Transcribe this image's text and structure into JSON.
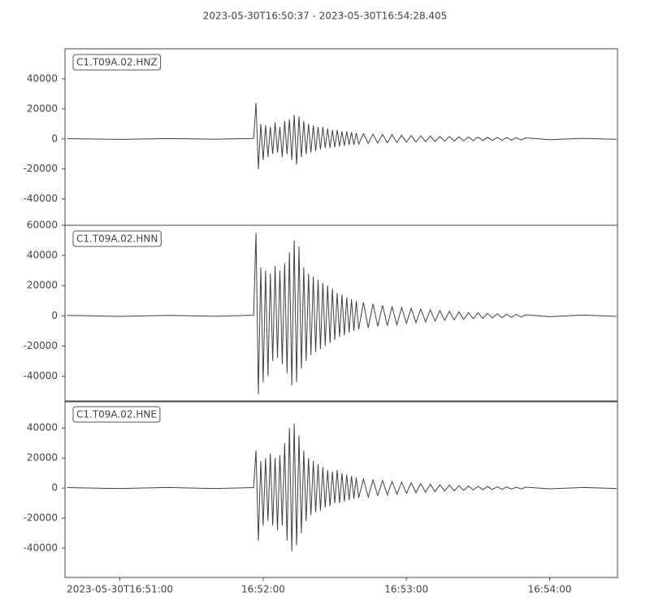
{
  "chart_data": [
    {
      "type": "line",
      "title": "2023-05-30T16:50:37  -  2023-05-30T16:54:28.405",
      "x": [
        38,
        60,
        80,
        100,
        116,
        117,
        118,
        119,
        120,
        121,
        122,
        123,
        124,
        125,
        126,
        127,
        128,
        129,
        130,
        131,
        132,
        133,
        134,
        135,
        136,
        137,
        138,
        139,
        140,
        141,
        142,
        143,
        144,
        145,
        146,
        147,
        148,
        149,
        150,
        151,
        152,
        153,
        154,
        155,
        156,
        157,
        158,
        159,
        160,
        162,
        164,
        166,
        168,
        170,
        172,
        174,
        176,
        178,
        180,
        182,
        184,
        186,
        188,
        190,
        192,
        194,
        196,
        198,
        200,
        202,
        204,
        206,
        208,
        210,
        212,
        214,
        216,
        218,
        220,
        222,
        224,
        226,
        228,
        230,
        240,
        254,
        268
      ],
      "series": [
        {
          "name": "C1.T09A.02.HNZ",
          "color": "#404040",
          "values": [
            200,
            -300,
            250,
            -200,
            300,
            24000,
            -20000,
            10000,
            -14000,
            9000,
            -12000,
            8000,
            -10000,
            11000,
            -9000,
            8000,
            -12000,
            12000,
            -10000,
            13000,
            -14000,
            16000,
            -17000,
            15000,
            -12000,
            12000,
            -10000,
            10000,
            -9000,
            9000,
            -8000,
            8000,
            -7000,
            8000,
            -6000,
            7000,
            -6000,
            6000,
            -5500,
            6000,
            -5000,
            5000,
            -4500,
            5000,
            -4000,
            4500,
            -4000,
            4000,
            -3500,
            3500,
            -3000,
            3200,
            -2800,
            3000,
            -2600,
            2800,
            -2400,
            2500,
            -2200,
            2300,
            -2000,
            2000,
            -1800,
            1900,
            -1700,
            1700,
            -1500,
            1600,
            -1400,
            1400,
            -1300,
            1300,
            -1200,
            1200,
            -1100,
            1100,
            -1000,
            1000,
            -900,
            900,
            -800,
            800,
            -700,
            700,
            -500,
            400,
            -300
          ]
        }
      ],
      "xlim": [
        37,
        268.405
      ],
      "ylim": [
        -57500,
        60000
      ],
      "yticks": [
        -40000,
        -20000,
        0,
        20000,
        40000
      ]
    },
    {
      "type": "line",
      "x": [
        38,
        60,
        80,
        100,
        116,
        117,
        118,
        119,
        120,
        121,
        122,
        123,
        124,
        125,
        126,
        127,
        128,
        129,
        130,
        131,
        132,
        133,
        134,
        135,
        136,
        137,
        138,
        139,
        140,
        141,
        142,
        143,
        144,
        145,
        146,
        147,
        148,
        149,
        150,
        151,
        152,
        153,
        154,
        155,
        156,
        157,
        158,
        159,
        160,
        162,
        164,
        166,
        168,
        170,
        172,
        174,
        176,
        178,
        180,
        182,
        184,
        186,
        188,
        190,
        192,
        194,
        196,
        198,
        200,
        202,
        204,
        206,
        208,
        210,
        212,
        214,
        216,
        218,
        220,
        222,
        224,
        226,
        228,
        230,
        240,
        254,
        268
      ],
      "series": [
        {
          "name": "C1.T09A.02.HNN",
          "color": "#404040",
          "values": [
            300,
            -400,
            300,
            -300,
            400,
            55000,
            -52000,
            32000,
            -44000,
            30000,
            -40000,
            28000,
            -30000,
            33000,
            -28000,
            30000,
            -32000,
            35000,
            -38000,
            42000,
            -46000,
            50000,
            -44000,
            46000,
            -35000,
            32000,
            -30000,
            28000,
            -26000,
            26000,
            -24000,
            24000,
            -22000,
            22000,
            -20000,
            20000,
            -18000,
            18000,
            -16000,
            15000,
            -14000,
            14000,
            -13000,
            12000,
            -11000,
            11000,
            -10000,
            10000,
            -9000,
            9000,
            -8000,
            8000,
            -7000,
            7000,
            -6500,
            6000,
            -6000,
            5500,
            -5000,
            5000,
            -4500,
            4500,
            -4000,
            4000,
            -3500,
            3500,
            -3000,
            3000,
            -2800,
            2600,
            -2400,
            2200,
            -2000,
            2000,
            -1800,
            1600,
            -1500,
            1400,
            -1200,
            1100,
            -1000,
            900,
            -800,
            700,
            -600,
            500,
            -400
          ]
        }
      ],
      "xlim": [
        37,
        268.405
      ],
      "ylim": [
        -57000,
        60000
      ],
      "yticks": [
        -40000,
        -20000,
        0,
        20000,
        40000,
        60000
      ]
    },
    {
      "type": "line",
      "x": [
        38,
        60,
        80,
        100,
        116,
        117,
        118,
        119,
        120,
        121,
        122,
        123,
        124,
        125,
        126,
        127,
        128,
        129,
        130,
        131,
        132,
        133,
        134,
        135,
        136,
        137,
        138,
        139,
        140,
        141,
        142,
        143,
        144,
        145,
        146,
        147,
        148,
        149,
        150,
        151,
        152,
        153,
        154,
        155,
        156,
        157,
        158,
        159,
        160,
        162,
        164,
        166,
        168,
        170,
        172,
        174,
        176,
        178,
        180,
        182,
        184,
        186,
        188,
        190,
        192,
        194,
        196,
        198,
        200,
        202,
        204,
        206,
        208,
        210,
        212,
        214,
        216,
        218,
        220,
        222,
        224,
        226,
        228,
        230,
        240,
        254,
        268
      ],
      "series": [
        {
          "name": "C1.T09A.02.HNE",
          "color": "#404040",
          "values": [
            300,
            -300,
            400,
            -300,
            300,
            25000,
            -35000,
            18000,
            -25000,
            20000,
            -22000,
            23000,
            -25000,
            20000,
            -28000,
            22000,
            -25000,
            30000,
            -35000,
            40000,
            -42000,
            43000,
            -38000,
            35000,
            -30000,
            25000,
            -22000,
            20000,
            -18000,
            18000,
            -16000,
            16000,
            -15000,
            14000,
            -13000,
            12000,
            -12000,
            11000,
            -10000,
            12000,
            -10000,
            10000,
            -9000,
            9000,
            -8000,
            8000,
            -7000,
            7000,
            -6500,
            6000,
            -6000,
            5500,
            -5000,
            5000,
            -4500,
            4500,
            -4000,
            4000,
            -3500,
            3500,
            -3000,
            3000,
            -2800,
            2600,
            -2400,
            2200,
            -2000,
            2000,
            -1800,
            1600,
            -1500,
            1400,
            -1300,
            1200,
            -1100,
            1000,
            -900,
            900,
            -800,
            800,
            -700,
            700,
            -600,
            600,
            -500,
            400,
            -300
          ]
        }
      ],
      "xlim": [
        37,
        268.405
      ],
      "ylim": [
        -59500,
        58000
      ],
      "yticks": [
        -40000,
        -20000,
        0,
        20000,
        40000
      ],
      "xticks": [
        {
          "value": 60,
          "label": "2023-05-30T16:51:00"
        },
        {
          "value": 120,
          "label": "16:52:00"
        },
        {
          "value": 180,
          "label": "16:53:00"
        },
        {
          "value": 240,
          "label": "16:54:00"
        }
      ]
    }
  ]
}
